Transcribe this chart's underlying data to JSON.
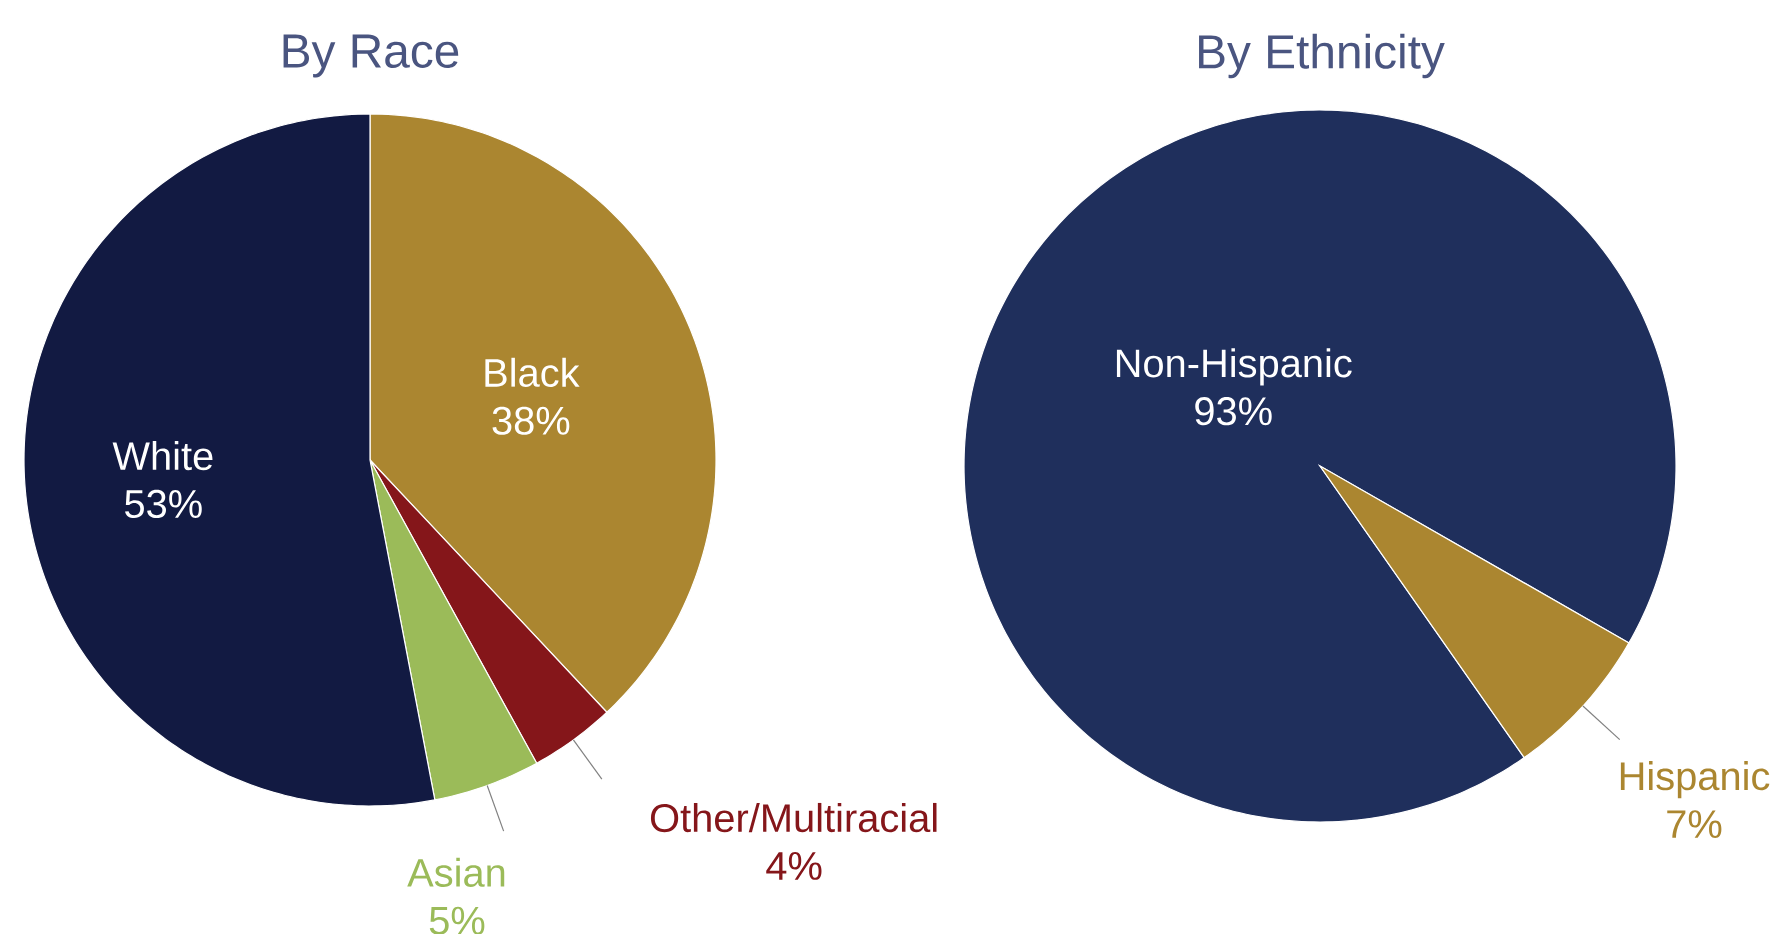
{
  "chart_data": [
    {
      "type": "pie",
      "title": "By Race",
      "categories": [
        "Black",
        "Other/Multiracial",
        "Asian",
        "White"
      ],
      "values": [
        38,
        4,
        5,
        53
      ],
      "value_labels": [
        "38%",
        "4%",
        "5%",
        "53%"
      ],
      "colors": [
        "#ab8630",
        "#85161a",
        "#9bbb59",
        "#121a42"
      ]
    },
    {
      "type": "pie",
      "title": "By Ethnicity",
      "categories": [
        "Non-Hispanic",
        "Hispanic"
      ],
      "values": [
        93,
        7
      ],
      "value_labels": [
        "93%",
        "7%"
      ],
      "colors": [
        "#1f2f5c",
        "#ab8630"
      ]
    }
  ]
}
